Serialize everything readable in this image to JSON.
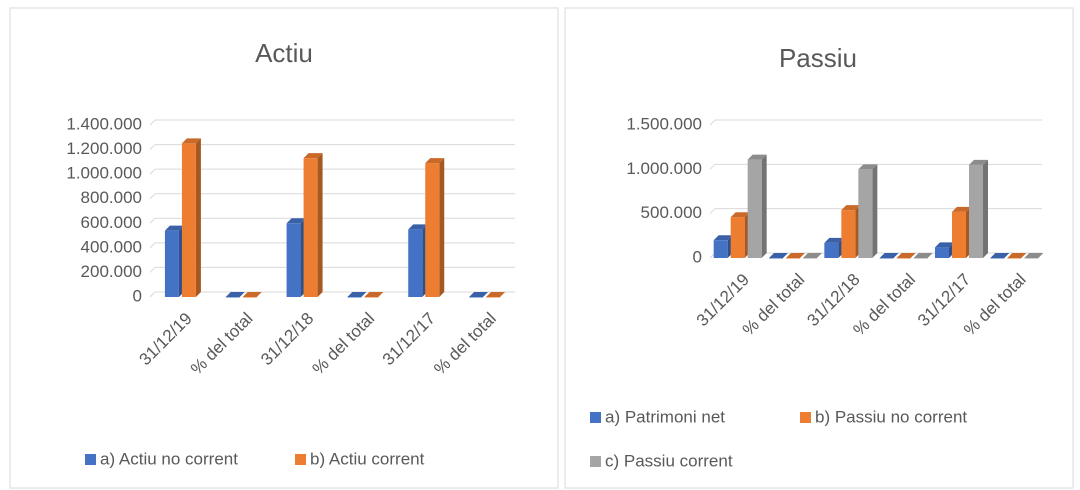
{
  "chart_data": [
    {
      "type": "bar",
      "title": "Actiu",
      "categories": [
        "31/12/19",
        "% del total",
        "31/12/18",
        "% del total",
        "31/12/17",
        "% del total"
      ],
      "series": [
        {
          "name": "a) Actiu no corrent",
          "color": "#4472c4",
          "values": [
            540000,
            30,
            600000,
            35,
            550000,
            34
          ]
        },
        {
          "name": "b) Actiu corrent",
          "color": "#ed7d31",
          "values": [
            1250000,
            70,
            1130000,
            65,
            1090000,
            66
          ]
        }
      ],
      "ylim": [
        0,
        1400000
      ],
      "yticks": [
        0,
        {
          "value": 200000,
          "label": "200.000"
        },
        {
          "value": 400000,
          "label": "400.000"
        },
        {
          "value": 600000,
          "label": "600.000"
        },
        {
          "value": 800000,
          "label": "800.000"
        },
        {
          "value": 1000000,
          "label": "1.000.000"
        },
        {
          "value": 1200000,
          "label": "1.200.000"
        },
        {
          "value": 1400000,
          "label": "1.400.000"
        }
      ],
      "grid": true,
      "legend": "bottom"
    },
    {
      "type": "bar",
      "title": "Passiu",
      "categories": [
        "31/12/19",
        "% del total",
        "31/12/18",
        "% del total",
        "31/12/17",
        "% del total"
      ],
      "series": [
        {
          "name": "a) Patrimoni net",
          "color": "#4472c4",
          "values": [
            200000,
            11,
            170000,
            10,
            120000,
            7
          ]
        },
        {
          "name": "b) Passiu no corrent",
          "color": "#ed7d31",
          "values": [
            460000,
            26,
            540000,
            31,
            520000,
            31
          ]
        },
        {
          "name": "c) Passiu corrent",
          "color": "#a5a5a5",
          "values": [
            1110000,
            63,
            1000000,
            59,
            1050000,
            62
          ]
        }
      ],
      "ylim": [
        0,
        1500000
      ],
      "yticks": [
        0,
        {
          "value": 500000,
          "label": "500.000"
        },
        {
          "value": 1000000,
          "label": "1.000.000"
        },
        {
          "value": 1500000,
          "label": "1.500.000"
        }
      ],
      "grid": true,
      "legend": "bottom"
    }
  ]
}
